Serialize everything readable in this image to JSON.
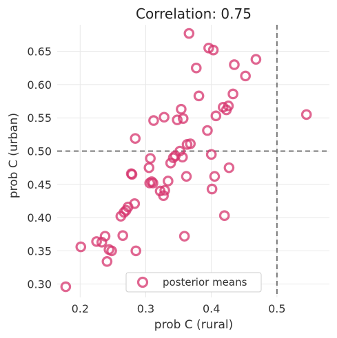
{
  "chart_data": {
    "type": "scatter",
    "title": "Correlation: 0.75",
    "xlabel": "prob C (rural)",
    "ylabel": "prob C (urban)",
    "xlim": [
      0.165,
      0.58
    ],
    "ylim": [
      0.28,
      0.69
    ],
    "xticks": [
      0.2,
      0.3,
      0.4,
      0.5
    ],
    "xtick_labels": [
      "0.2",
      "0.3",
      "0.4",
      "0.5"
    ],
    "yticks": [
      0.3,
      0.35,
      0.4,
      0.45,
      0.5,
      0.55,
      0.6,
      0.65
    ],
    "ytick_labels": [
      "0.30",
      "0.35",
      "0.40",
      "0.45",
      "0.50",
      "0.55",
      "0.60",
      "0.65"
    ],
    "grid": true,
    "legend_position": "lower-center",
    "reference_lines": {
      "vertical_x": 0.5,
      "horizontal_y": 0.5
    },
    "colors": {
      "marker": "#d6336c",
      "reference_line": "#777777",
      "grid": "#e8e8e8"
    },
    "series": [
      {
        "name": "posterior means",
        "marker": "hollow-circle",
        "points": [
          [
            0.178,
            0.296
          ],
          [
            0.201,
            0.356
          ],
          [
            0.225,
            0.364
          ],
          [
            0.233,
            0.363
          ],
          [
            0.238,
            0.372
          ],
          [
            0.241,
            0.334
          ],
          [
            0.244,
            0.352
          ],
          [
            0.248,
            0.35
          ],
          [
            0.262,
            0.402
          ],
          [
            0.265,
            0.373
          ],
          [
            0.267,
            0.408
          ],
          [
            0.27,
            0.411
          ],
          [
            0.273,
            0.416
          ],
          [
            0.278,
            0.466
          ],
          [
            0.279,
            0.465
          ],
          [
            0.283,
            0.421
          ],
          [
            0.284,
            0.519
          ],
          [
            0.285,
            0.35
          ],
          [
            0.305,
            0.475
          ],
          [
            0.306,
            0.452
          ],
          [
            0.307,
            0.489
          ],
          [
            0.309,
            0.454
          ],
          [
            0.311,
            0.452
          ],
          [
            0.312,
            0.546
          ],
          [
            0.322,
            0.44
          ],
          [
            0.327,
            0.433
          ],
          [
            0.328,
            0.551
          ],
          [
            0.329,
            0.441
          ],
          [
            0.334,
            0.455
          ],
          [
            0.338,
            0.482
          ],
          [
            0.342,
            0.49
          ],
          [
            0.345,
            0.493
          ],
          [
            0.348,
            0.547
          ],
          [
            0.352,
            0.5
          ],
          [
            0.354,
            0.563
          ],
          [
            0.356,
            0.491
          ],
          [
            0.357,
            0.549
          ],
          [
            0.359,
            0.372
          ],
          [
            0.362,
            0.462
          ],
          [
            0.363,
            0.51
          ],
          [
            0.366,
            0.677
          ],
          [
            0.368,
            0.511
          ],
          [
            0.377,
            0.625
          ],
          [
            0.381,
            0.583
          ],
          [
            0.394,
            0.531
          ],
          [
            0.396,
            0.655
          ],
          [
            0.4,
            0.495
          ],
          [
            0.401,
            0.443
          ],
          [
            0.403,
            0.652
          ],
          [
            0.405,
            0.462
          ],
          [
            0.407,
            0.553
          ],
          [
            0.418,
            0.566
          ],
          [
            0.42,
            0.403
          ],
          [
            0.423,
            0.562
          ],
          [
            0.426,
            0.568
          ],
          [
            0.427,
            0.475
          ],
          [
            0.433,
            0.586
          ],
          [
            0.435,
            0.63
          ],
          [
            0.452,
            0.613
          ],
          [
            0.468,
            0.638
          ],
          [
            0.545,
            0.555
          ]
        ]
      }
    ]
  }
}
